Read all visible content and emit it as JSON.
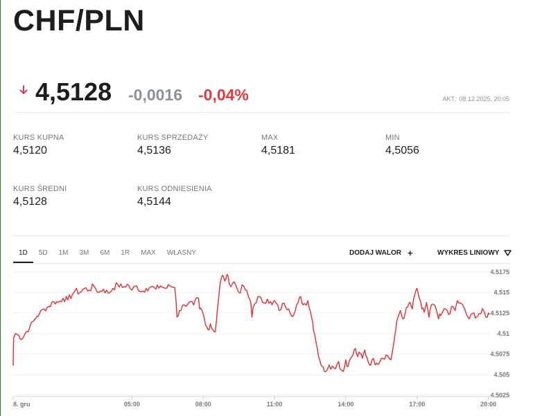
{
  "pair": "CHF/PLN",
  "quote": {
    "direction": "down",
    "direction_color": "#e0393e",
    "price": "4,5128",
    "change_abs": "-0,0016",
    "change_pct": "-0,04%",
    "updated": "AKT.: 08.12.2025, 20:05"
  },
  "stats": [
    {
      "label": "KURS KUPNA",
      "value": "4,5120"
    },
    {
      "label": "KURS SPRZEDAŻY",
      "value": "4,5136"
    },
    {
      "label": "MAX",
      "value": "4,5181"
    },
    {
      "label": "MIN",
      "value": "4,5056"
    },
    {
      "label": "KURS ŚREDNI",
      "value": "4,5128"
    },
    {
      "label": "KURS ODNIESIENIA",
      "value": "4,5144"
    }
  ],
  "tabs": [
    "1D",
    "5D",
    "1M",
    "3M",
    "6M",
    "1R",
    "MAX",
    "WŁASNY"
  ],
  "active_tab": "1D",
  "tools": {
    "add_asset": "DODAJ WALOR",
    "add_icon": "plus-icon",
    "chart_type": "WYKRES LINIOWY",
    "chart_type_icon": "triangle-down-icon"
  },
  "chart_data": {
    "type": "line",
    "line_color": "#e0393e",
    "grid": true,
    "x_ticks": [
      {
        "h": 0,
        "label": "8. gru"
      },
      {
        "h": 5,
        "label": "05:00"
      },
      {
        "h": 8,
        "label": "08:00"
      },
      {
        "h": 11,
        "label": "11:00"
      },
      {
        "h": 14,
        "label": "14:00"
      },
      {
        "h": 17,
        "label": "17:00"
      },
      {
        "h": 20,
        "label": "20:00"
      }
    ],
    "y_ticks": [
      {
        "v": 4.5025,
        "label": "4.5025"
      },
      {
        "v": 4.505,
        "label": "4.505"
      },
      {
        "v": 4.5075,
        "label": "4.5075"
      },
      {
        "v": 4.51,
        "label": "4.51"
      },
      {
        "v": 4.5125,
        "label": "4.5125"
      },
      {
        "v": 4.515,
        "label": "4.515"
      },
      {
        "v": 4.5175,
        "label": "4.5175"
      }
    ],
    "xlim": [
      0,
      20.1
    ],
    "ylim": [
      4.5025,
      4.5185
    ],
    "points": [
      [
        0.0,
        4.5061
      ],
      [
        0.02,
        4.5095
      ],
      [
        0.1,
        4.51
      ],
      [
        0.25,
        4.5097
      ],
      [
        0.4,
        4.5094
      ],
      [
        0.5,
        4.51
      ],
      [
        0.7,
        4.5108
      ],
      [
        0.9,
        4.5117
      ],
      [
        1.0,
        4.5121
      ],
      [
        1.1,
        4.5124
      ],
      [
        1.3,
        4.513
      ],
      [
        1.5,
        4.5133
      ],
      [
        1.7,
        4.5139
      ],
      [
        1.9,
        4.5138
      ],
      [
        2.1,
        4.5143
      ],
      [
        2.3,
        4.5141
      ],
      [
        2.5,
        4.5148
      ],
      [
        2.6,
        4.5152
      ],
      [
        2.8,
        4.515
      ],
      [
        3.0,
        4.5155
      ],
      [
        3.2,
        4.5153
      ],
      [
        3.4,
        4.5158
      ],
      [
        3.6,
        4.515
      ],
      [
        3.8,
        4.5154
      ],
      [
        4.0,
        4.5149
      ],
      [
        4.2,
        4.5155
      ],
      [
        4.4,
        4.516
      ],
      [
        4.6,
        4.5156
      ],
      [
        4.8,
        4.516
      ],
      [
        5.0,
        4.5153
      ],
      [
        5.2,
        4.5158
      ],
      [
        5.4,
        4.5151
      ],
      [
        5.6,
        4.5155
      ],
      [
        5.8,
        4.5157
      ],
      [
        6.0,
        4.5154
      ],
      [
        6.2,
        4.5158
      ],
      [
        6.4,
        4.5155
      ],
      [
        6.6,
        4.5158
      ],
      [
        6.8,
        4.5156
      ],
      [
        6.85,
        4.5142
      ],
      [
        6.9,
        4.512
      ],
      [
        7.0,
        4.5128
      ],
      [
        7.2,
        4.5135
      ],
      [
        7.4,
        4.5138
      ],
      [
        7.6,
        4.5135
      ],
      [
        7.8,
        4.5143
      ],
      [
        7.85,
        4.513
      ],
      [
        8.0,
        4.5124
      ],
      [
        8.1,
        4.511
      ],
      [
        8.2,
        4.5105
      ],
      [
        8.3,
        4.5112
      ],
      [
        8.4,
        4.5105
      ],
      [
        8.5,
        4.5102
      ],
      [
        8.6,
        4.513
      ],
      [
        8.7,
        4.5158
      ],
      [
        8.8,
        4.5171
      ],
      [
        8.9,
        4.5164
      ],
      [
        9.0,
        4.5172
      ],
      [
        9.1,
        4.516
      ],
      [
        9.3,
        4.5163
      ],
      [
        9.5,
        4.515
      ],
      [
        9.7,
        4.5158
      ],
      [
        9.9,
        4.5145
      ],
      [
        10.0,
        4.5138
      ],
      [
        10.05,
        4.512
      ],
      [
        10.1,
        4.5132
      ],
      [
        10.3,
        4.5145
      ],
      [
        10.5,
        4.5138
      ],
      [
        10.7,
        4.5142
      ],
      [
        10.9,
        4.5135
      ],
      [
        11.0,
        4.514
      ],
      [
        11.2,
        4.5128
      ],
      [
        11.4,
        4.5137
      ],
      [
        11.6,
        4.513
      ],
      [
        11.8,
        4.5122
      ],
      [
        12.0,
        4.5138
      ],
      [
        12.1,
        4.5145
      ],
      [
        12.2,
        4.5135
      ],
      [
        12.4,
        4.514
      ],
      [
        12.5,
        4.5128
      ],
      [
        12.6,
        4.5115
      ],
      [
        12.7,
        4.5098
      ],
      [
        12.8,
        4.5082
      ],
      [
        12.9,
        4.5068
      ],
      [
        13.0,
        4.506
      ],
      [
        13.1,
        4.5054
      ],
      [
        13.3,
        4.5062
      ],
      [
        13.5,
        4.5058
      ],
      [
        13.7,
        4.5066
      ],
      [
        13.8,
        4.5056
      ],
      [
        13.9,
        4.5054
      ],
      [
        14.0,
        4.5068
      ],
      [
        14.1,
        4.506
      ],
      [
        14.2,
        4.507
      ],
      [
        14.3,
        4.5074
      ],
      [
        14.4,
        4.5082
      ],
      [
        14.5,
        4.5072
      ],
      [
        14.6,
        4.5076
      ],
      [
        14.7,
        4.507
      ],
      [
        14.8,
        4.508
      ],
      [
        14.9,
        4.507
      ],
      [
        15.0,
        4.5062
      ],
      [
        15.1,
        4.5068
      ],
      [
        15.3,
        4.5064
      ],
      [
        15.5,
        4.507
      ],
      [
        15.7,
        4.5074
      ],
      [
        15.9,
        4.5068
      ],
      [
        16.0,
        4.5085
      ],
      [
        16.1,
        4.5105
      ],
      [
        16.2,
        4.512
      ],
      [
        16.3,
        4.5128
      ],
      [
        16.4,
        4.5118
      ],
      [
        16.5,
        4.5125
      ],
      [
        16.6,
        4.5132
      ],
      [
        16.7,
        4.5138
      ],
      [
        16.8,
        4.513
      ],
      [
        16.9,
        4.5147
      ],
      [
        17.0,
        4.5155
      ],
      [
        17.1,
        4.5142
      ],
      [
        17.2,
        4.513
      ],
      [
        17.3,
        4.5126
      ],
      [
        17.4,
        4.5138
      ],
      [
        17.5,
        4.512
      ],
      [
        17.6,
        4.5135
      ],
      [
        17.8,
        4.513
      ],
      [
        17.9,
        4.5118
      ],
      [
        18.0,
        4.5122
      ],
      [
        18.2,
        4.513
      ],
      [
        18.4,
        4.5125
      ],
      [
        18.5,
        4.5133
      ],
      [
        18.6,
        4.5128
      ],
      [
        18.7,
        4.514
      ],
      [
        18.8,
        4.5137
      ],
      [
        19.0,
        4.513
      ],
      [
        19.1,
        4.5122
      ],
      [
        19.2,
        4.5118
      ],
      [
        19.4,
        4.5125
      ],
      [
        19.5,
        4.512
      ],
      [
        19.6,
        4.5124
      ],
      [
        19.7,
        4.5125
      ],
      [
        19.8,
        4.5128
      ],
      [
        19.9,
        4.512
      ],
      [
        20.0,
        4.5125
      ],
      [
        20.05,
        4.5123
      ]
    ]
  }
}
